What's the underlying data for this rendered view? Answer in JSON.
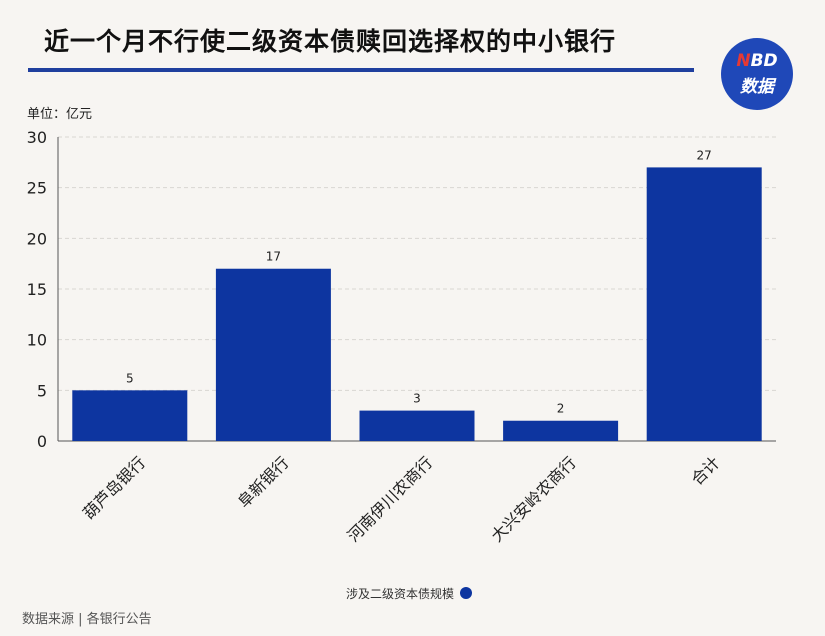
{
  "header": {
    "title": "近一个月不行使二级资本债赎回选择权的中小银行",
    "logo_line1": "NBD",
    "logo_line2": "数据"
  },
  "unit_label": "单位：亿元",
  "legend_label": "涉及二级资本债规模",
  "source_label": "数据来源 | 各银行公告",
  "colors": {
    "bar": "#0d35a0",
    "title_rule": "#1f3f9e",
    "logo": "#1f48b8"
  },
  "chart_data": {
    "type": "bar",
    "categories": [
      "葫芦岛银行",
      "阜新银行",
      "河南伊川农商行",
      "大兴安岭农商行",
      "合计"
    ],
    "series": [
      {
        "name": "涉及二级资本债规模",
        "values": [
          5,
          17,
          3,
          2,
          27
        ]
      }
    ],
    "ylim": [
      0,
      30
    ],
    "yticks": [
      0,
      5,
      10,
      15,
      20,
      25,
      30
    ],
    "ylabel": "单位：亿元",
    "grid": true,
    "legend": "bottom-center"
  }
}
